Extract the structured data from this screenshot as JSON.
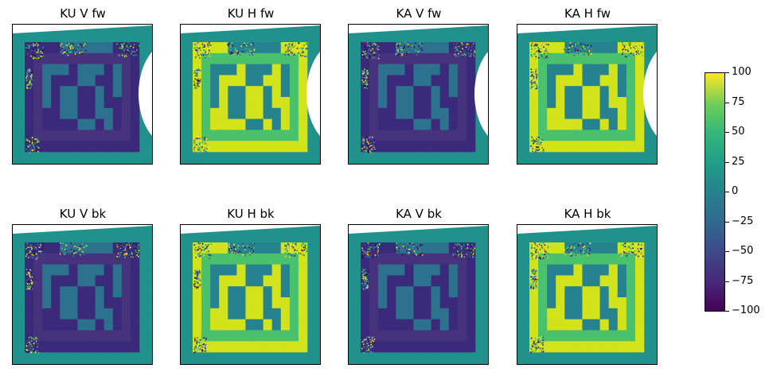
{
  "chart_data": {
    "type": "heatmap",
    "panels": [
      {
        "title": "KU V fw",
        "row": 0,
        "col": 0,
        "palette": "low",
        "gap": "cut"
      },
      {
        "title": "KU H fw",
        "row": 0,
        "col": 1,
        "palette": "high",
        "gap": "cut"
      },
      {
        "title": "KA V fw",
        "row": 0,
        "col": 2,
        "palette": "low",
        "gap": "cut"
      },
      {
        "title": "KA H fw",
        "row": 0,
        "col": 3,
        "palette": "high",
        "gap": "cut"
      },
      {
        "title": "KU V bk",
        "row": 1,
        "col": 0,
        "palette": "low",
        "gap": "none"
      },
      {
        "title": "KU H bk",
        "row": 1,
        "col": 1,
        "palette": "high",
        "gap": "none"
      },
      {
        "title": "KA V bk",
        "row": 1,
        "col": 2,
        "palette": "low",
        "gap": "none"
      },
      {
        "title": "KA H bk",
        "row": 1,
        "col": 3,
        "palette": "high",
        "gap": "none"
      }
    ],
    "colorbar": {
      "min": -100,
      "max": 100,
      "ticks": [
        100,
        75,
        50,
        25,
        0,
        -25,
        -50,
        -75,
        -100
      ],
      "tick_labels": [
        "100",
        "75",
        "50",
        "25",
        "0",
        "−25",
        "−50",
        "−75",
        "−100"
      ],
      "colormap": "viridis"
    },
    "grid_pattern": [
      "LLLLMMMMMMLLL",
      "LNNNNNNNNNNNL",
      "LNMMMLMMMLMNL",
      "LNMLLLMMLLMNL",
      "LNMLMMLLMLMNL",
      "LNMLMMLLMLLNL",
      "LNLLMMLLMMLNL",
      "LNLLLLMMLMLNL",
      "LNNNNNNNNNNNL",
      "LLLLLLLLLLLLL"
    ]
  }
}
